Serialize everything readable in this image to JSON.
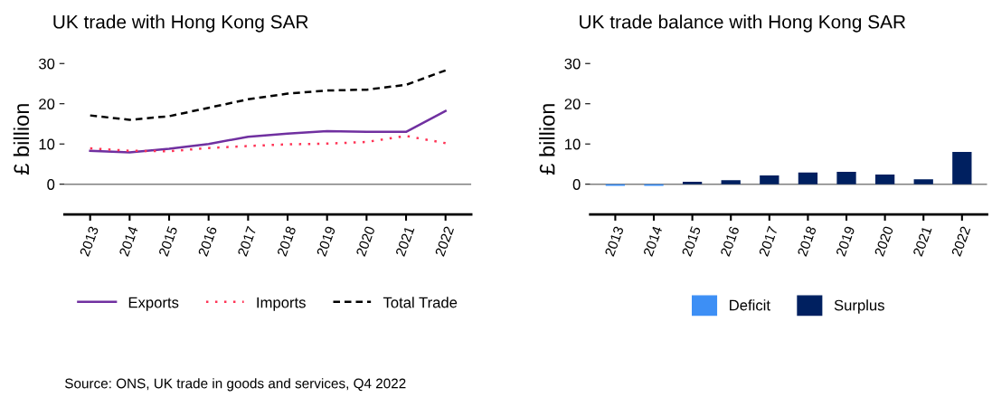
{
  "chart_data": [
    {
      "type": "line",
      "title": "UK trade with Hong Kong SAR",
      "ylabel": "£ billion",
      "categories": [
        "2013",
        "2014",
        "2015",
        "2016",
        "2017",
        "2018",
        "2019",
        "2020",
        "2021",
        "2022"
      ],
      "series": [
        {
          "name": "Exports",
          "color": "#7030a0",
          "line_style": "solid",
          "values": [
            8.3,
            7.9,
            8.8,
            10.0,
            11.8,
            12.6,
            13.2,
            13.0,
            13.0,
            18.2
          ]
        },
        {
          "name": "Imports",
          "color": "#ff3355",
          "line_style": "dotted",
          "values": [
            8.9,
            8.3,
            8.2,
            9.0,
            9.5,
            9.9,
            10.1,
            10.5,
            12.0,
            10.2
          ]
        },
        {
          "name": "Total Trade",
          "color": "#000000",
          "line_style": "dashed",
          "values": [
            17.1,
            16.0,
            16.9,
            19.0,
            21.1,
            22.5,
            23.3,
            23.5,
            24.7,
            28.3
          ]
        }
      ],
      "ylim": [
        -7.5,
        30
      ],
      "yticks": [
        0,
        10,
        20,
        30
      ],
      "grid": false,
      "legend": "bottom",
      "ref_lines": [
        {
          "axis": "y",
          "value": 0,
          "color": "#808080"
        }
      ],
      "annotations": [
        "Source: ONS, UK trade in goods and services, Q4 2022"
      ]
    },
    {
      "type": "bar",
      "title": "UK trade balance with Hong Kong SAR",
      "ylabel": "£ billion",
      "categories": [
        "2013",
        "2014",
        "2015",
        "2016",
        "2017",
        "2018",
        "2019",
        "2020",
        "2021",
        "2022"
      ],
      "series": [
        {
          "name": "Deficit",
          "color": "#3d8ff5",
          "values": [
            -0.4,
            -0.4,
            null,
            null,
            null,
            null,
            null,
            null,
            null,
            null
          ]
        },
        {
          "name": "Surplus",
          "color": "#002060",
          "values": [
            null,
            null,
            0.6,
            1.0,
            2.2,
            2.9,
            3.1,
            2.4,
            1.2,
            8.0
          ]
        }
      ],
      "ylim": [
        -7.5,
        30
      ],
      "yticks": [
        0,
        10,
        20,
        30
      ],
      "grid": false,
      "legend": "bottom",
      "ref_lines": [
        {
          "axis": "y",
          "value": 0,
          "color": "#808080"
        }
      ]
    }
  ]
}
